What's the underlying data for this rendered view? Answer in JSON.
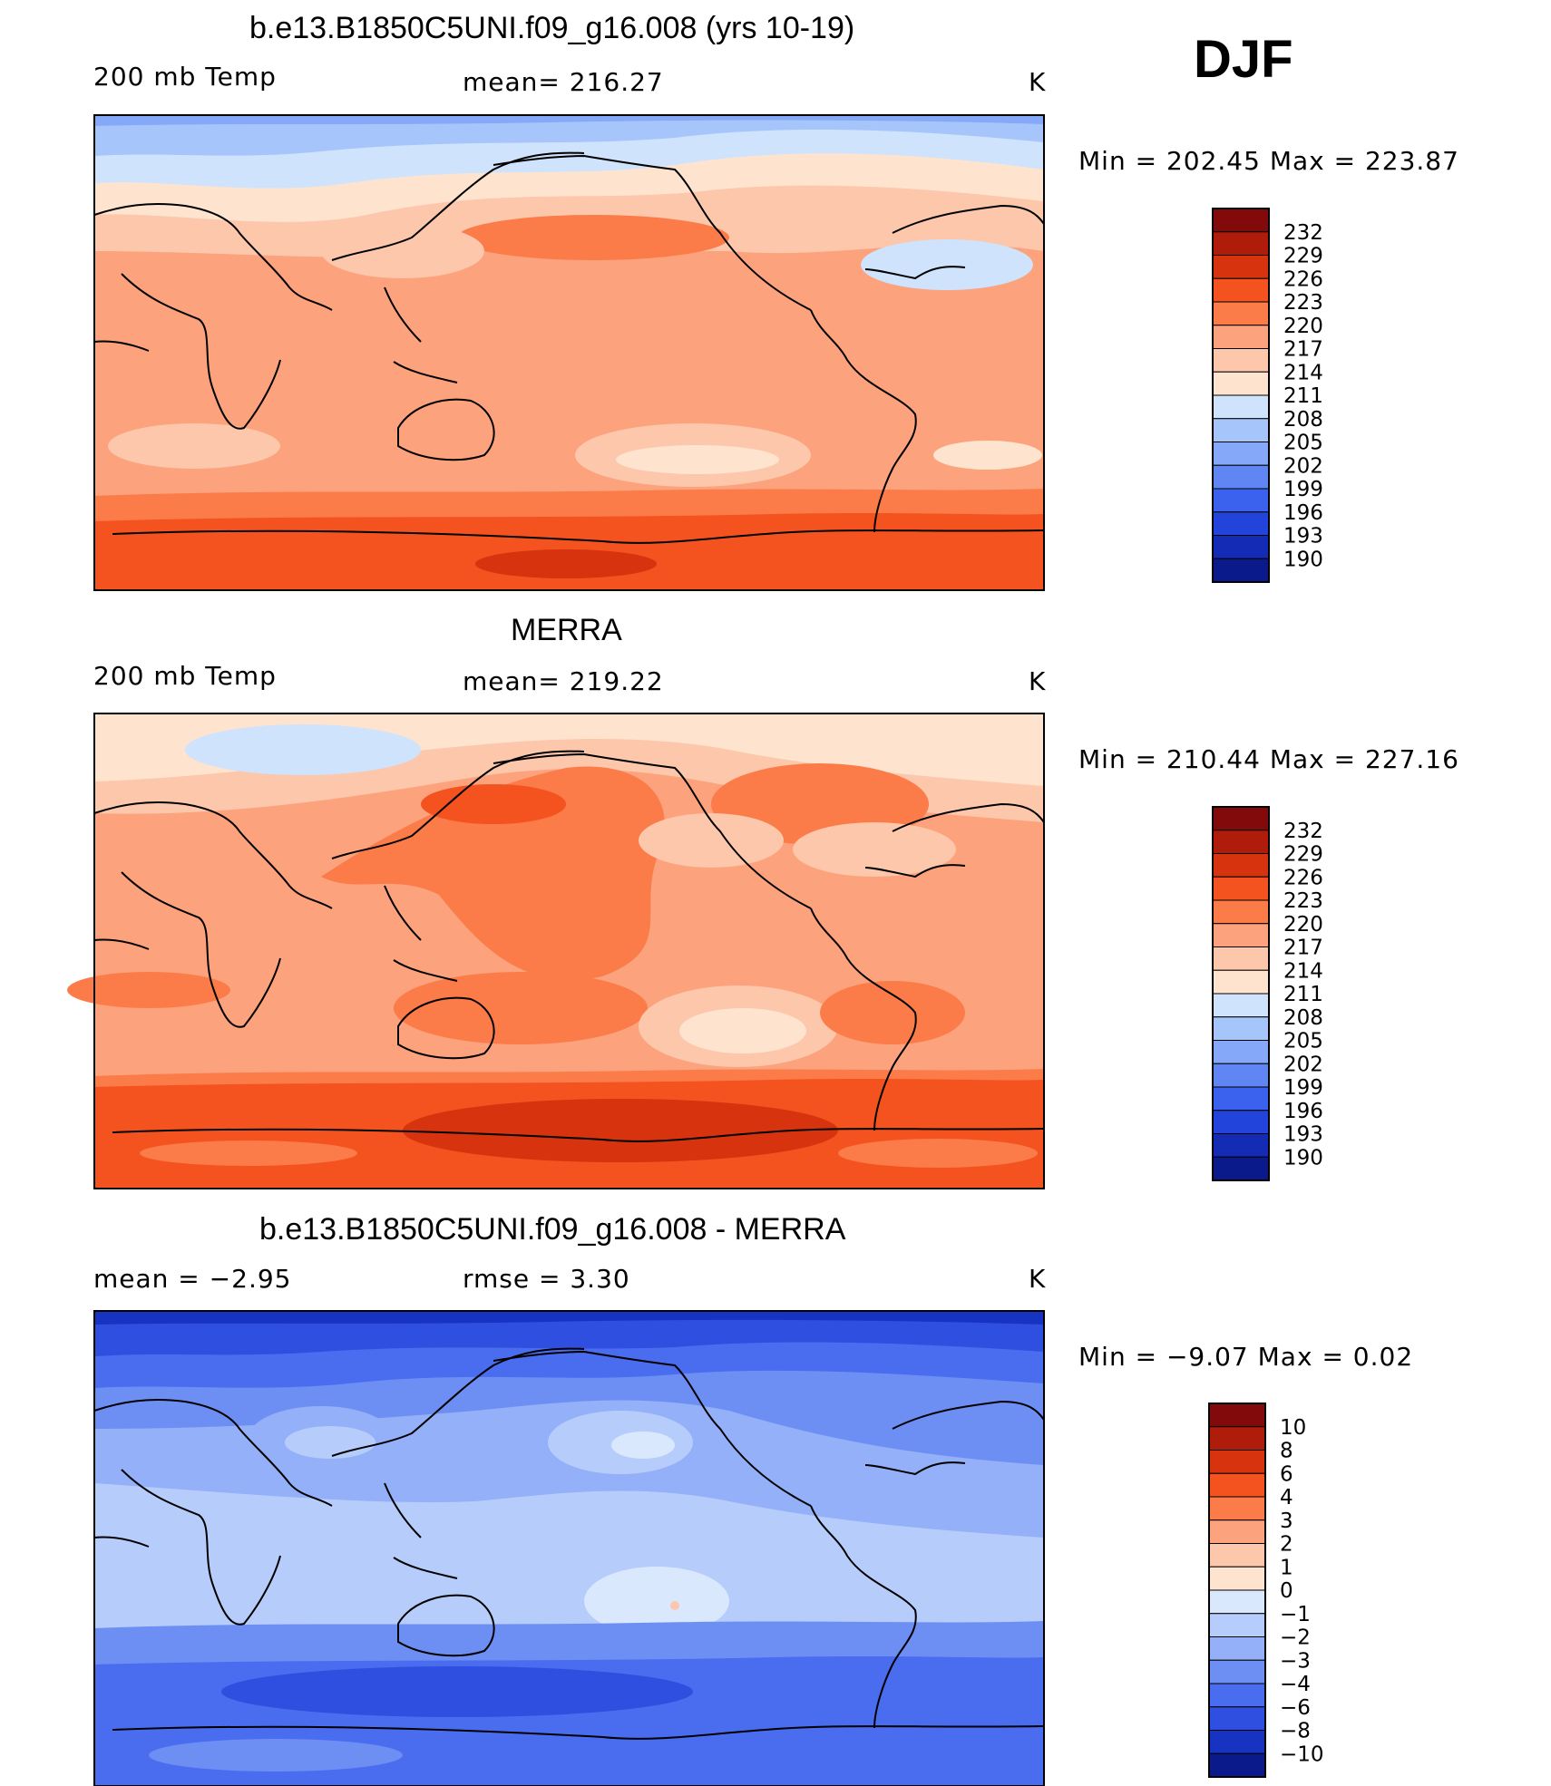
{
  "season": "DJF",
  "colors": {
    "absolute": [
      "#830a0a",
      "#b01c0a",
      "#d7330e",
      "#f4521f",
      "#fb7b49",
      "#fca27d",
      "#fdc7ab",
      "#fee4cf",
      "#cfe3fc",
      "#a6c6fb",
      "#85a8f8",
      "#5f86f3",
      "#3a62ee",
      "#2244da",
      "#132bb5",
      "#0b1a8a"
    ],
    "difference": [
      "#830a0a",
      "#b01c0a",
      "#d7330e",
      "#f4521f",
      "#fb7b49",
      "#fca27d",
      "#fdc7ab",
      "#fee4cf",
      "#d9e8fd",
      "#b6cdfb",
      "#93b0f8",
      "#6d8ff4",
      "#4a6cef",
      "#2e4fe0",
      "#1733c2",
      "#0b1a8a"
    ]
  },
  "panels": [
    {
      "title": "b.e13.B1850C5UNI.f09_g16.008 (yrs 10-19)",
      "left_label": "200 mb Temp",
      "center_label": "mean=  216.27",
      "units": "K",
      "range_text": "Min  =  202.45  Max  =  223.87"
    },
    {
      "title": "MERRA",
      "left_label": "200 mb Temp",
      "center_label": "mean=  219.22",
      "units": "K",
      "range_text": "Min  =  210.44  Max  =  227.16"
    },
    {
      "title": "b.e13.B1850C5UNI.f09_g16.008 - MERRA",
      "left_label": "mean  =      −2.95",
      "center_label": "rmse  =      3.30",
      "units": "K",
      "range_text": "Min  =     −9.07  Max  =      0.02"
    }
  ],
  "chart_data": [
    {
      "type": "heatmap",
      "title": "b.e13.B1850C5UNI.f09_g16.008 (yrs 10-19)",
      "variable": "200 mb Temp",
      "units": "K",
      "mean": 216.27,
      "min": 202.45,
      "max": 223.87,
      "colorbar_levels": [
        "232",
        "229",
        "226",
        "223",
        "220",
        "217",
        "214",
        "211",
        "208",
        "205",
        "202",
        "199",
        "196",
        "193",
        "190"
      ]
    },
    {
      "type": "heatmap",
      "title": "MERRA",
      "variable": "200 mb Temp",
      "units": "K",
      "mean": 219.22,
      "min": 210.44,
      "max": 227.16,
      "colorbar_levels": [
        "232",
        "229",
        "226",
        "223",
        "220",
        "217",
        "214",
        "211",
        "208",
        "205",
        "202",
        "199",
        "196",
        "193",
        "190"
      ]
    },
    {
      "type": "heatmap",
      "title": "b.e13.B1850C5UNI.f09_g16.008 - MERRA",
      "units": "K",
      "mean": -2.95,
      "rmse": 3.3,
      "min": -9.07,
      "max": 0.02,
      "colorbar_levels": [
        "10",
        "8",
        "6",
        "4",
        "3",
        "2",
        "1",
        "0",
        "−1",
        "−2",
        "−3",
        "−4",
        "−6",
        "−8",
        "−10"
      ]
    }
  ]
}
